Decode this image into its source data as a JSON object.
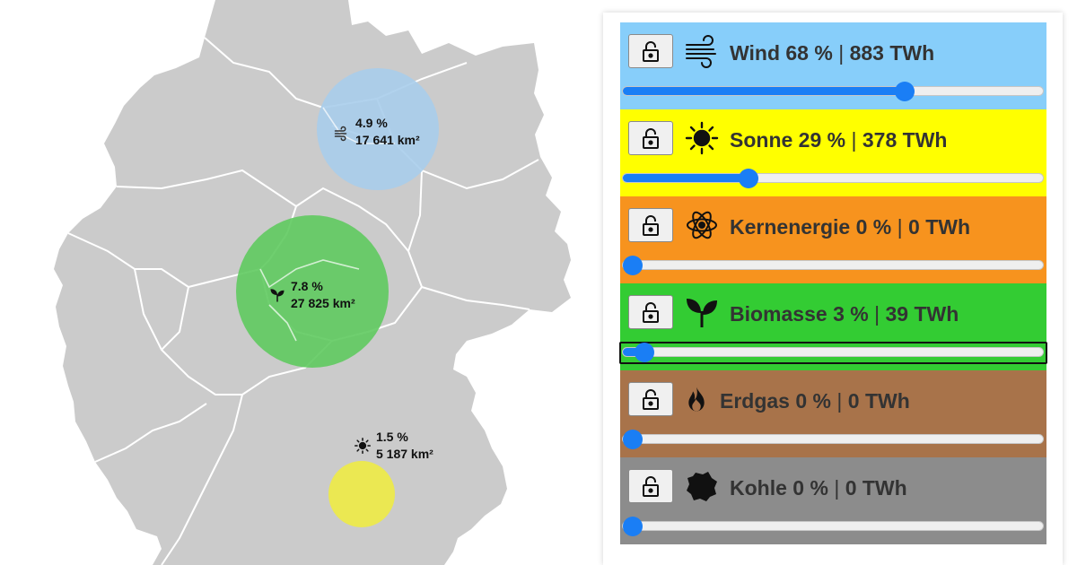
{
  "map": {
    "colors": {
      "land": "#cbcbcb",
      "border": "#ffffff"
    },
    "circles": [
      {
        "id": "wind",
        "percent": "4.9 %",
        "area": "17 641 km²",
        "icon": "wind-icon",
        "color": "#a9cdeb"
      },
      {
        "id": "bio",
        "percent": "7.8 %",
        "area": "27 825 km²",
        "icon": "sprout-icon",
        "color": "#5fca5f"
      },
      {
        "id": "sun",
        "percent": "1.5 %",
        "area": "5 187 km²",
        "icon": "sun-icon",
        "color": "#ece94b"
      }
    ]
  },
  "panel": {
    "rows": [
      {
        "name": "Wind",
        "percent": "68 %",
        "energy": "883 TWh",
        "value": 0.68,
        "color": "#87cefa",
        "text_color": "#333333",
        "icon": "wind-icon",
        "lock": "unlock-icon",
        "focused": false
      },
      {
        "name": "Sonne",
        "percent": "29 %",
        "energy": "378 TWh",
        "value": 0.29,
        "color": "#ffff00",
        "text_color": "#333333",
        "icon": "sun-icon",
        "lock": "unlock-icon",
        "focused": false
      },
      {
        "name": "Kernenergie",
        "percent": "0 %",
        "energy": "0 TWh",
        "value": 0.0,
        "color": "#f7931e",
        "text_color": "#333333",
        "icon": "atom-icon",
        "lock": "unlock-icon",
        "focused": false
      },
      {
        "name": "Biomasse",
        "percent": "3 %",
        "energy": "39 TWh",
        "value": 0.03,
        "color": "#33cc33",
        "text_color": "#333333",
        "icon": "sprout-icon",
        "lock": "unlock-icon",
        "focused": true
      },
      {
        "name": "Erdgas",
        "percent": "0 %",
        "energy": "0 TWh",
        "value": 0.0,
        "color": "#a8734a",
        "text_color": "#333333",
        "icon": "flame-icon",
        "lock": "unlock-icon",
        "focused": false
      },
      {
        "name": "Kohle",
        "percent": "0 %",
        "energy": "0 TWh",
        "value": 0.0,
        "color": "#8c8c8c",
        "text_color": "#333333",
        "icon": "coal-icon",
        "lock": "unlock-icon",
        "focused": false
      }
    ]
  }
}
